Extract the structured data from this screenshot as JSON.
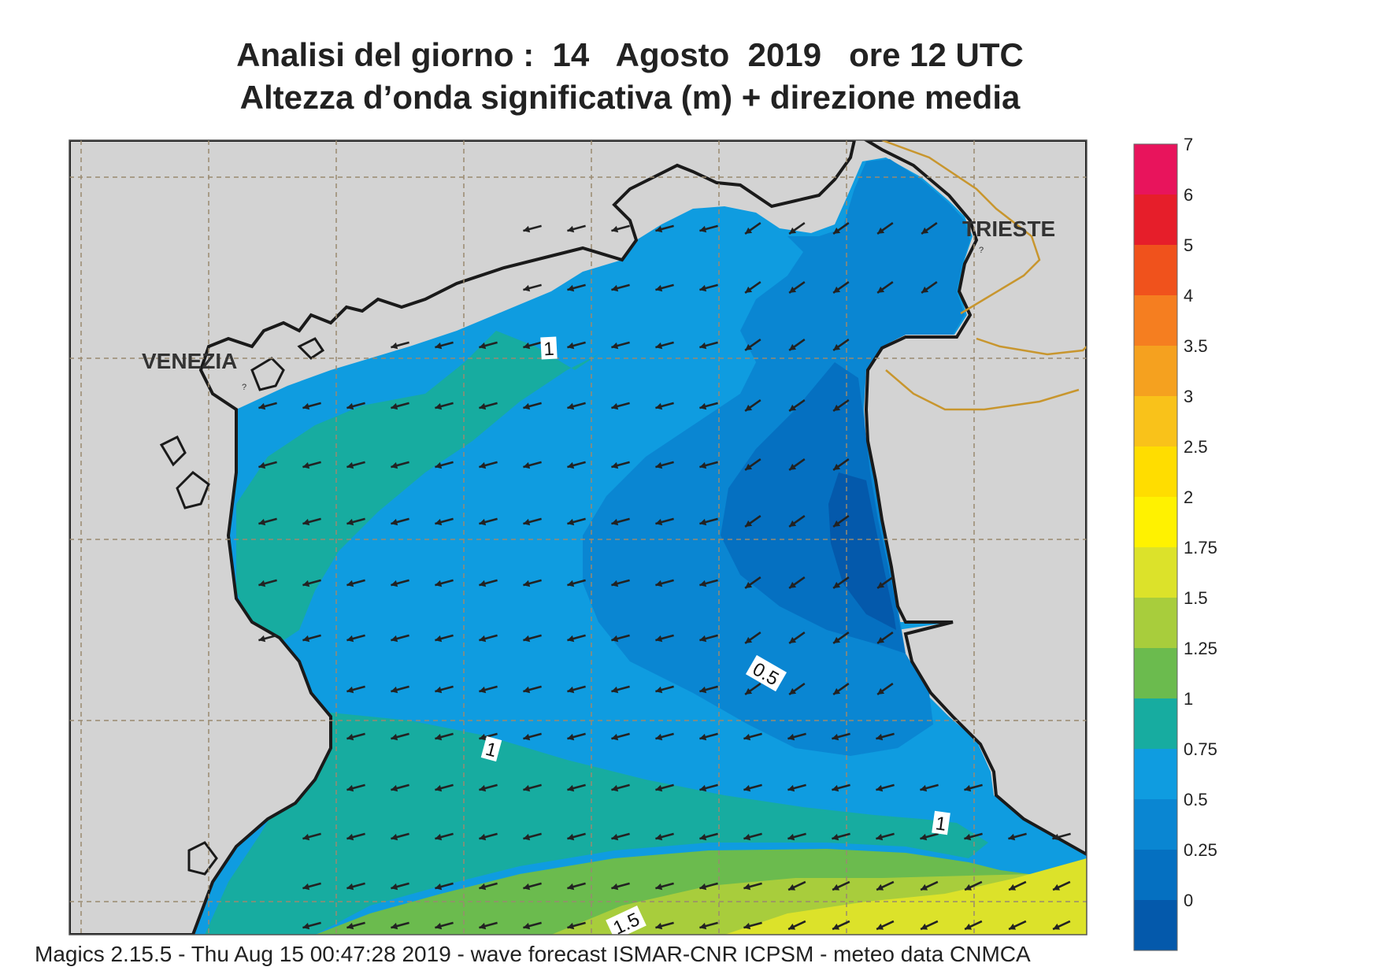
{
  "title": {
    "line1": "Analisi del giorno :  14   Agosto  2019   ore 12 UTC",
    "line2": "Altezza d’onda significativa (m) + direzione media"
  },
  "places": {
    "venezia": "VENEZIA",
    "trieste": "TRIESTE"
  },
  "contour_labels": {
    "north_1": "1",
    "center_1": "1",
    "east_1": "1",
    "half": "0.5",
    "south_15": "1.5"
  },
  "legend": {
    "ticks": [
      "7",
      "6",
      "5",
      "4",
      "3.5",
      "3",
      "2.5",
      "2",
      "1.75",
      "1.5",
      "1.25",
      "1",
      "0.75",
      "0.5",
      "0.25",
      "0"
    ],
    "colors": [
      "#e8145c",
      "#e61e2a",
      "#f0521c",
      "#f57e20",
      "#f5a11f",
      "#f9c21a",
      "#ffdd00",
      "#fff200",
      "#dce22a",
      "#a8cd3c",
      "#6bbb4e",
      "#17aca0",
      "#0f9ce0",
      "#0a86d2",
      "#0570c1",
      "#0459ab"
    ]
  },
  "colors": {
    "land": "#d3d3d3",
    "coast": "#1a1a1a",
    "border": "#c8962e",
    "grid": "#9a8a70",
    "arrow": "#222222"
  },
  "footer": "Magics 2.15.5 - Thu Aug 15 00:47:28 2019 - wave forecast  ISMAR-CNR  ICPSM - meteo data   CNMCA"
}
